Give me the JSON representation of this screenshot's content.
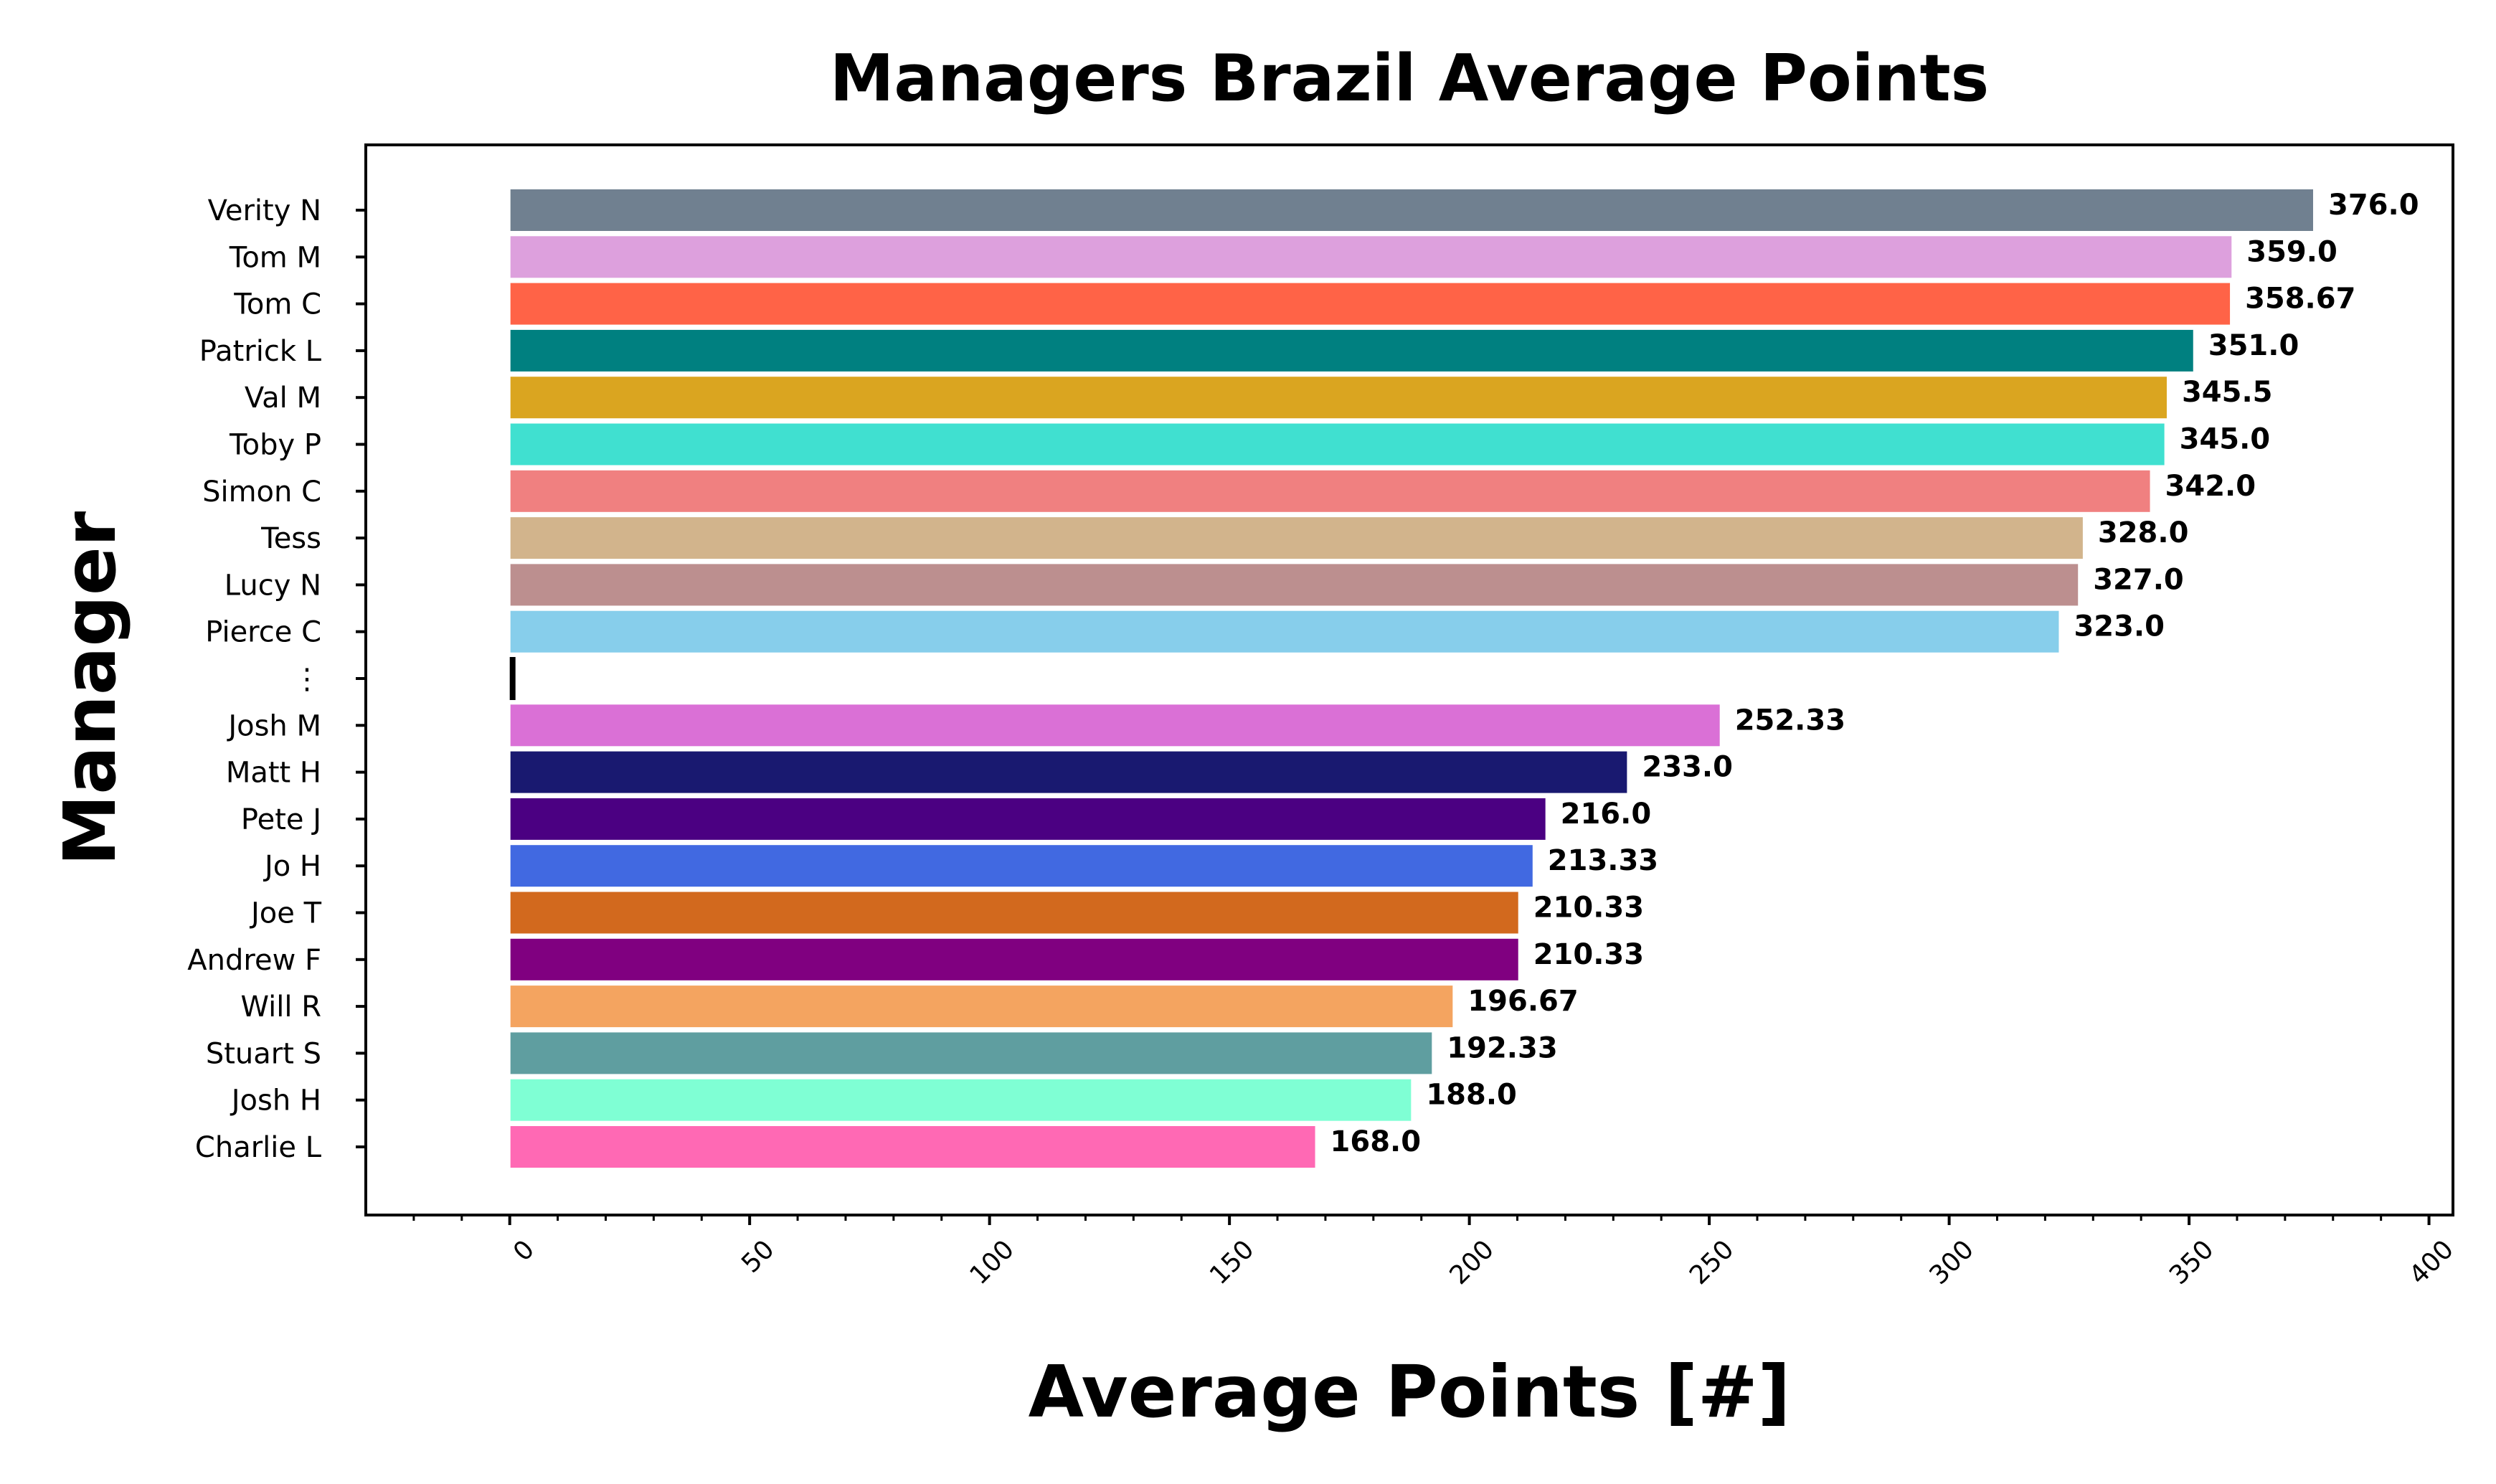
{
  "chart_data": {
    "type": "bar",
    "orientation": "horizontal",
    "title": "Managers Brazil Average Points",
    "xlabel": "Average Points [#]",
    "ylabel": "Manager",
    "xlim": [
      -30,
      405
    ],
    "xticks": [
      0,
      50,
      100,
      150,
      200,
      250,
      300,
      350,
      400
    ],
    "grid": false,
    "legend": "none",
    "categories": [
      "Verity N",
      "Tom M",
      "Tom C",
      "Patrick L",
      "Val M",
      "Toby P",
      "Simon C",
      "Tess",
      "Lucy N",
      "Pierce C",
      "⋮",
      "Josh M",
      "Matt H",
      "Pete J",
      "Jo H",
      "Joe T",
      "Andrew F",
      "Will R",
      "Stuart S",
      "Josh H",
      "Charlie L"
    ],
    "values": [
      376.0,
      359.0,
      358.67,
      351.0,
      345.5,
      345.0,
      342.0,
      328.0,
      327.0,
      323.0,
      1,
      252.33,
      233.0,
      216.0,
      213.33,
      210.33,
      210.33,
      196.67,
      192.33,
      188.0,
      168.0
    ],
    "data_labels": [
      "376.0",
      "359.0",
      "358.67",
      "351.0",
      "345.5",
      "345.0",
      "342.0",
      "328.0",
      "327.0",
      "323.0",
      "",
      "252.33",
      "233.0",
      "216.0",
      "213.33",
      "210.33",
      "210.33",
      "196.67",
      "192.33",
      "188.0",
      "168.0"
    ],
    "colors": [
      "#708090",
      "#dda0dd",
      "#ff6347",
      "#008080",
      "#daa520",
      "#40e0d0",
      "#f08080",
      "#d2b48c",
      "#bc8f8f",
      "#87ceeb",
      "#000000",
      "#da70d6",
      "#191970",
      "#4b0082",
      "#4169e1",
      "#d2691e",
      "#800080",
      "#f4a460",
      "#5f9ea0",
      "#7fffd4",
      "#ff69b4"
    ]
  }
}
